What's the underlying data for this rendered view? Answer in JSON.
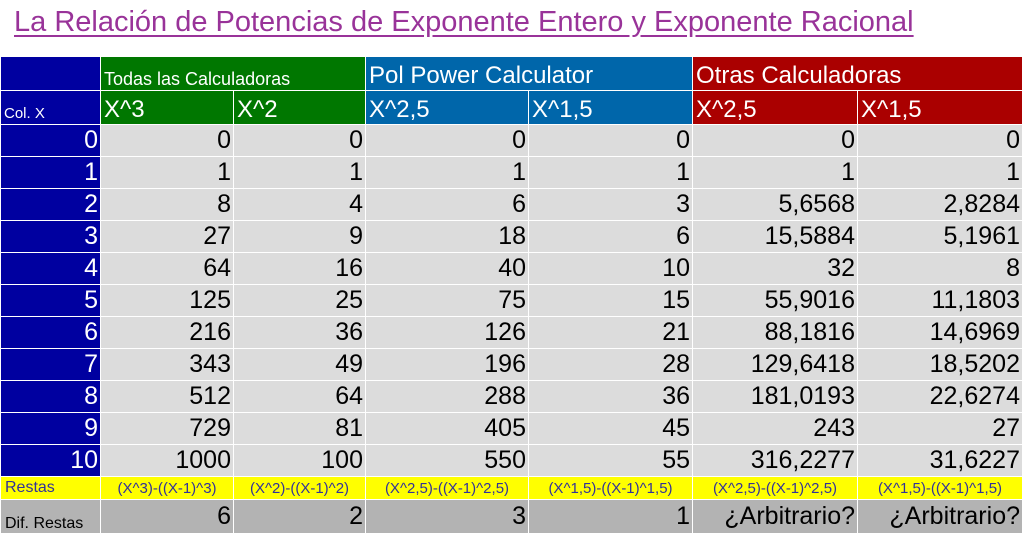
{
  "title": "La Relación de Potencias de Exponente Entero y Exponente Racional",
  "groups": {
    "g1": "Todas las Calculadoras",
    "g2": "Pol Power Calculator",
    "g3": "Otras Calculadoras"
  },
  "colx_label": "Col. X",
  "headers": [
    "X^3",
    "X^2",
    "X^2,5",
    "X^1,5",
    "X^2,5",
    "X^1,5"
  ],
  "rows": [
    [
      "0",
      "0",
      "0",
      "0",
      "0",
      "0",
      "0"
    ],
    [
      "1",
      "1",
      "1",
      "1",
      "1",
      "1",
      "1"
    ],
    [
      "2",
      "8",
      "4",
      "6",
      "3",
      "5,6568",
      "2,8284"
    ],
    [
      "3",
      "27",
      "9",
      "18",
      "6",
      "15,5884",
      "5,1961"
    ],
    [
      "4",
      "64",
      "16",
      "40",
      "10",
      "32",
      "8"
    ],
    [
      "5",
      "125",
      "25",
      "75",
      "15",
      "55,9016",
      "11,1803"
    ],
    [
      "6",
      "216",
      "36",
      "126",
      "21",
      "88,1816",
      "14,6969"
    ],
    [
      "7",
      "343",
      "49",
      "196",
      "28",
      "129,6418",
      "18,5202"
    ],
    [
      "8",
      "512",
      "64",
      "288",
      "36",
      "181,0193",
      "22,6274"
    ],
    [
      "9",
      "729",
      "81",
      "405",
      "45",
      "243",
      "27"
    ],
    [
      "10",
      "1000",
      "100",
      "550",
      "55",
      "316,2277",
      "31,6227"
    ]
  ],
  "restas": {
    "label": "Restas",
    "formulas": [
      "(X^3)-((X-1)^3)",
      "(X^2)-((X-1)^2)",
      "(X^2,5)-((X-1)^2,5)",
      "(X^1,5)-((X-1)^1,5)",
      "(X^2,5)-((X-1)^2,5)",
      "(X^1,5)-((X-1)^1,5)"
    ]
  },
  "dif": {
    "label": "Dif. Restas",
    "values": [
      "6",
      "2",
      "3",
      "1",
      "¿Arbitrario?",
      "¿Arbitrario?"
    ]
  },
  "colors": {
    "title": "#993399",
    "index": "#0000a0",
    "green": "#007700",
    "teal": "#0066aa",
    "red": "#aa0000",
    "cells": "#dcdcdc",
    "restas": "#ffff00",
    "dif": "#b3b3b3"
  }
}
